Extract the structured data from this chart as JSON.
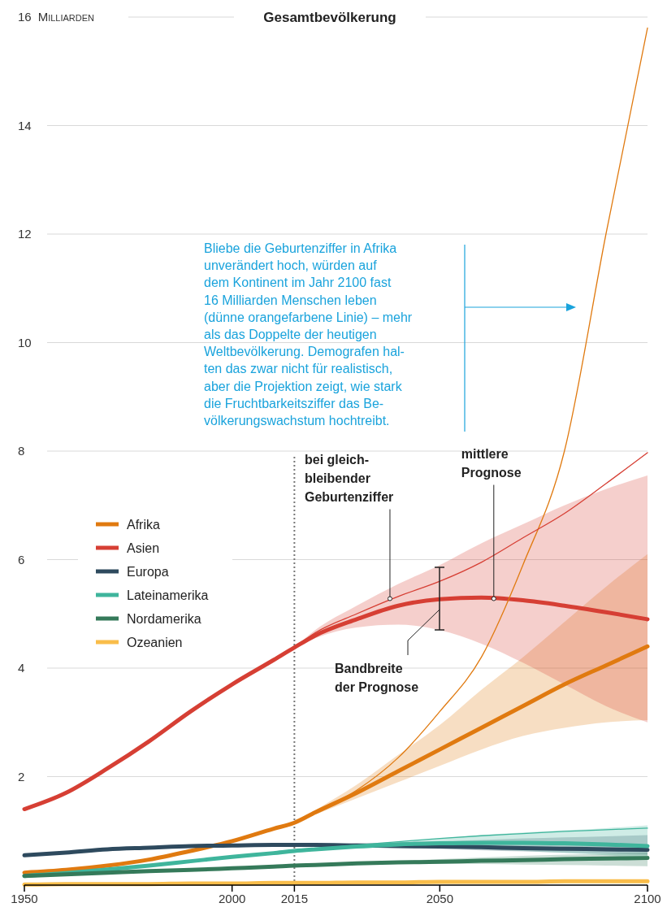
{
  "chart_data": {
    "type": "line",
    "title": "Gesamtbevölkerung",
    "ylabel": "Milliarden",
    "x": [
      1950,
      1960,
      1970,
      1980,
      1990,
      2000,
      2010,
      2015,
      2020,
      2030,
      2040,
      2050,
      2060,
      2070,
      2080,
      2090,
      2100
    ],
    "xlim": [
      1950,
      2100
    ],
    "xticks": [
      1950,
      2000,
      2015,
      2050,
      2100
    ],
    "ylim": [
      0,
      16
    ],
    "yticks": [
      {
        "value": 0,
        "label": null
      },
      2,
      4,
      6,
      8,
      10,
      12,
      14,
      16
    ],
    "grid": "y",
    "legend": "left",
    "series": [
      {
        "name": "Afrika",
        "color": "#e07a10",
        "values": [
          0.23,
          0.28,
          0.36,
          0.47,
          0.63,
          0.81,
          1.04,
          1.15,
          1.34,
          1.7,
          2.1,
          2.5,
          2.9,
          3.3,
          3.7,
          4.05,
          4.4
        ],
        "lower": [
          null,
          null,
          null,
          null,
          null,
          null,
          null,
          1.15,
          1.3,
          1.6,
          1.9,
          2.2,
          2.5,
          2.75,
          2.9,
          3.0,
          3.04
        ],
        "upper": [
          null,
          null,
          null,
          null,
          null,
          null,
          null,
          1.15,
          1.38,
          1.85,
          2.4,
          2.95,
          3.6,
          4.2,
          4.85,
          5.5,
          6.1
        ]
      },
      {
        "name": "Asien",
        "color": "#d63f34",
        "values": [
          1.4,
          1.7,
          2.15,
          2.65,
          3.2,
          3.7,
          4.15,
          4.38,
          4.6,
          4.9,
          5.15,
          5.27,
          5.3,
          5.25,
          5.15,
          5.03,
          4.9
        ],
        "lower": [
          null,
          null,
          null,
          null,
          null,
          null,
          null,
          4.38,
          4.55,
          4.75,
          4.8,
          4.7,
          4.45,
          4.1,
          3.7,
          3.3,
          3.0
        ],
        "upper": [
          null,
          null,
          null,
          null,
          null,
          null,
          null,
          4.38,
          4.7,
          5.15,
          5.55,
          5.9,
          6.3,
          6.65,
          7.0,
          7.3,
          7.55
        ]
      },
      {
        "name": "Europa",
        "color": "#2e4a5e",
        "values": [
          0.55,
          0.6,
          0.66,
          0.69,
          0.72,
          0.73,
          0.74,
          0.74,
          0.74,
          0.73,
          0.72,
          0.71,
          0.7,
          0.68,
          0.67,
          0.66,
          0.65
        ],
        "lower": [
          null,
          null,
          null,
          null,
          null,
          null,
          null,
          0.74,
          0.73,
          0.71,
          0.69,
          0.67,
          0.64,
          0.62,
          0.6,
          0.58,
          0.56
        ],
        "upper": [
          null,
          null,
          null,
          null,
          null,
          null,
          null,
          0.74,
          0.75,
          0.77,
          0.79,
          0.81,
          0.83,
          0.86,
          0.88,
          0.9,
          0.92
        ]
      },
      {
        "name": "Lateinamerika",
        "color": "#3fb59c",
        "values": [
          0.17,
          0.22,
          0.29,
          0.36,
          0.44,
          0.52,
          0.59,
          0.63,
          0.66,
          0.71,
          0.75,
          0.77,
          0.78,
          0.78,
          0.77,
          0.75,
          0.72
        ],
        "lower": [
          null,
          null,
          null,
          null,
          null,
          null,
          null,
          0.63,
          0.65,
          0.68,
          0.69,
          0.68,
          0.66,
          0.63,
          0.59,
          0.55,
          0.5
        ],
        "upper": [
          null,
          null,
          null,
          null,
          null,
          null,
          null,
          0.63,
          0.67,
          0.74,
          0.8,
          0.86,
          0.92,
          0.97,
          1.01,
          1.05,
          1.1
        ]
      },
      {
        "name": "Nordamerika",
        "color": "#357a5a",
        "values": [
          0.17,
          0.2,
          0.23,
          0.26,
          0.28,
          0.31,
          0.34,
          0.36,
          0.37,
          0.4,
          0.42,
          0.43,
          0.45,
          0.46,
          0.48,
          0.49,
          0.5
        ],
        "lower": [
          null,
          null,
          null,
          null,
          null,
          null,
          null,
          0.36,
          0.37,
          0.38,
          0.39,
          0.39,
          0.39,
          0.38,
          0.37,
          0.36,
          0.35
        ],
        "upper": [
          null,
          null,
          null,
          null,
          null,
          null,
          null,
          0.36,
          0.38,
          0.42,
          0.45,
          0.48,
          0.51,
          0.54,
          0.56,
          0.58,
          0.6
        ]
      },
      {
        "name": "Ozeanien",
        "color": "#f9bd4a",
        "values": [
          0.01,
          0.02,
          0.02,
          0.02,
          0.03,
          0.03,
          0.04,
          0.04,
          0.04,
          0.05,
          0.05,
          0.06,
          0.06,
          0.06,
          0.07,
          0.07,
          0.07
        ]
      },
      {
        "color": "#e07a10",
        "values": [
          null,
          null,
          null,
          null,
          null,
          null,
          null,
          1.15,
          1.35,
          1.75,
          2.35,
          3.2,
          4.2,
          5.9,
          8.0,
          12.0,
          15.8
        ]
      },
      {
        "color": "#d63f34",
        "values": [
          null,
          null,
          null,
          null,
          null,
          null,
          null,
          4.38,
          4.65,
          5.0,
          5.32,
          5.6,
          5.95,
          6.4,
          6.85,
          7.4,
          7.97
        ]
      },
      {
        "color": "#3fb59c",
        "values": [
          null,
          null,
          null,
          null,
          null,
          null,
          null,
          0.63,
          0.67,
          0.74,
          0.8,
          0.86,
          0.91,
          0.95,
          0.99,
          1.02,
          1.05
        ]
      }
    ],
    "ref_lines": [
      {
        "axis": "x",
        "value": 2015,
        "color": "#777777",
        "line_style": "dotted"
      }
    ],
    "annotations": [
      "Bliebe die Geburtenziffer in Afrika\nunverändert hoch, würden auf\ndem Kontinent im Jahr 2100 fast\n16 Milliarden Menschen leben\n(dünne orangefarbene Linie) – mehr\nals das Doppelte der heutigen\nWeltbevölkerung. Demografen hal-\nten das zwar nicht für realistisch,\naber die Projektion zeigt, wie stark\ndie Fruchtbarkeitsziffer das Be-\nvölkerungswachstum hochtreibt.",
      {
        "text": "bei gleich-\nbleibender\nGeburtenziffer",
        "x": 2038,
        "y": 5.28
      },
      {
        "text": "mittlere\nPrognose",
        "x": 2063,
        "y": 5.28
      },
      "Bandbreite\nder Prognose"
    ]
  }
}
